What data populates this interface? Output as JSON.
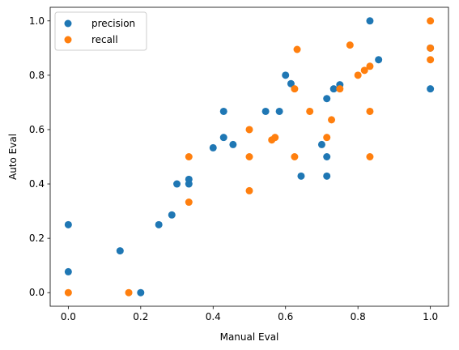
{
  "chart_data": {
    "type": "scatter",
    "xlabel": "Manual Eval",
    "ylabel": "Auto Eval",
    "xlim": [
      -0.05,
      1.05
    ],
    "ylim": [
      -0.05,
      1.05
    ],
    "xticks": [
      0.0,
      0.2,
      0.4,
      0.6,
      0.8,
      1.0
    ],
    "yticks": [
      0.0,
      0.2,
      0.4,
      0.6,
      0.8,
      1.0
    ],
    "xtick_labels": [
      "0.0",
      "0.2",
      "0.4",
      "0.6",
      "0.8",
      "1.0"
    ],
    "ytick_labels": [
      "0.0",
      "0.2",
      "0.4",
      "0.6",
      "0.8",
      "1.0"
    ],
    "grid": false,
    "legend_position": "top-left",
    "series": [
      {
        "name": "precision",
        "color": "#1f77b4",
        "points": [
          [
            0.0,
            0.25
          ],
          [
            0.0,
            0.077
          ],
          [
            0.143,
            0.154
          ],
          [
            0.2,
            0.0
          ],
          [
            0.25,
            0.25
          ],
          [
            0.286,
            0.286
          ],
          [
            0.3,
            0.4
          ],
          [
            0.333,
            0.4
          ],
          [
            0.333,
            0.417
          ],
          [
            0.4,
            0.533
          ],
          [
            0.429,
            0.571
          ],
          [
            0.429,
            0.667
          ],
          [
            0.455,
            0.545
          ],
          [
            0.545,
            0.667
          ],
          [
            0.583,
            0.667
          ],
          [
            0.6,
            0.8
          ],
          [
            0.615,
            0.769
          ],
          [
            0.643,
            0.429
          ],
          [
            0.7,
            0.545
          ],
          [
            0.714,
            0.714
          ],
          [
            0.714,
            0.5
          ],
          [
            0.714,
            0.429
          ],
          [
            0.733,
            0.75
          ],
          [
            0.75,
            0.765
          ],
          [
            0.833,
            1.0
          ],
          [
            0.857,
            0.857
          ],
          [
            1.0,
            0.9
          ],
          [
            1.0,
            0.75
          ]
        ]
      },
      {
        "name": "recall",
        "color": "#ff7f0e",
        "points": [
          [
            0.0,
            0.0
          ],
          [
            0.167,
            0.0
          ],
          [
            0.333,
            0.5
          ],
          [
            0.333,
            0.333
          ],
          [
            0.5,
            0.6
          ],
          [
            0.5,
            0.5
          ],
          [
            0.5,
            0.375
          ],
          [
            0.562,
            0.562
          ],
          [
            0.571,
            0.571
          ],
          [
            0.625,
            0.75
          ],
          [
            0.625,
            0.5
          ],
          [
            0.632,
            0.895
          ],
          [
            0.667,
            0.667
          ],
          [
            0.714,
            0.571
          ],
          [
            0.727,
            0.636
          ],
          [
            0.75,
            0.75
          ],
          [
            0.778,
            0.911
          ],
          [
            0.8,
            0.8
          ],
          [
            0.818,
            0.818
          ],
          [
            0.833,
            0.833
          ],
          [
            0.833,
            0.667
          ],
          [
            0.833,
            0.5
          ],
          [
            1.0,
            1.0
          ],
          [
            1.0,
            0.9
          ],
          [
            1.0,
            0.857
          ]
        ]
      }
    ]
  }
}
